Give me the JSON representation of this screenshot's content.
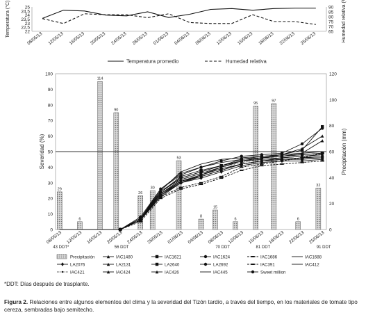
{
  "chart_data": [
    {
      "type": "line",
      "ylabel_left": "Temperatura (°C)",
      "ylabel_right": "Humedad relativa (%)",
      "x": [
        "08/05/13",
        "12/05/13",
        "16/05/13",
        "20/05/13",
        "24/05/13",
        "28/05/13",
        "01/06/13",
        "04/06/13",
        "08/06/13",
        "12/06/13",
        "15/06/13",
        "18/06/13",
        "22/06/13",
        "25/06/13"
      ],
      "yticks_left": [
        "25",
        "24,5",
        "24",
        "23,5",
        "23",
        "22,5",
        "22"
      ],
      "ylim_left": [
        22,
        25
      ],
      "yticks_right": [
        "90",
        "85",
        "80",
        "75",
        "70",
        "65"
      ],
      "ylim_right": [
        65,
        90
      ],
      "series": [
        {
          "name": "Temperatura promedio",
          "axis": "left",
          "style": "solid",
          "values": [
            23.6,
            24.6,
            24.5,
            24.0,
            23.9,
            24.4,
            23.7,
            24.1,
            24.7,
            24.8,
            24.6,
            24.8,
            24.85,
            24.85
          ]
        },
        {
          "name": "Humedad relativa",
          "axis": "right",
          "style": "dashed",
          "values": [
            78,
            73,
            83,
            82,
            82,
            79,
            83,
            74,
            73,
            73,
            82,
            75,
            75,
            72
          ]
        }
      ],
      "legend": "bottom"
    },
    {
      "type": "bar-line",
      "ylabel_left": "Severidad (%)",
      "ylabel_right": "Precipitación (mm)",
      "yticks_left": [
        "100",
        "90",
        "80",
        "70",
        "60",
        "50",
        "40",
        "30",
        "20",
        "10",
        "0"
      ],
      "ylim_left": [
        0,
        100
      ],
      "yticks_right": [
        "120",
        "100",
        "80",
        "60",
        "40",
        "20",
        "0"
      ],
      "ylim_right": [
        0,
        120
      ],
      "reference_line": 50,
      "x": [
        "08/05/13",
        "12/05/13",
        "16/05/13",
        "20/05/13",
        "24/05/13",
        "28/05/13",
        "01/06/13",
        "04/06/13",
        "08/06/13",
        "12/06/13",
        "15/06/13",
        "18/06/13",
        "22/06/13",
        "25/06/13"
      ],
      "ddt_labels": [
        {
          "after": "08/05/13",
          "text": "43 DDT*"
        },
        {
          "after": "20/05/13",
          "text": "56 DDT"
        },
        {
          "after": "08/06/13",
          "text": "70 DDT"
        },
        {
          "after": "15/06/13",
          "text": "81 DDT"
        },
        {
          "after": "25/06/13",
          "text": "91 DDT"
        }
      ],
      "precipitation": {
        "name": "Precipitación",
        "axis": "right",
        "positions": [
          0.0,
          1.0,
          2.0,
          2.8,
          4.0,
          4.6,
          5.9,
          7.0,
          7.7,
          8.7,
          9.7,
          10.6,
          11.8,
          12.8
        ],
        "values": [
          29,
          6,
          114,
          90,
          26,
          30,
          53,
          8,
          15,
          6,
          95,
          97,
          6,
          32
        ],
        "labels": [
          "29",
          "6",
          "114",
          "90",
          "26",
          "30",
          "53",
          "8",
          "15",
          "6",
          "95",
          "97",
          "6",
          "32"
        ]
      },
      "severity_positions": [
        0,
        1,
        2,
        3,
        4,
        5,
        6,
        7,
        8,
        9,
        10,
        11,
        12,
        13
      ],
      "severity_series": [
        {
          "name": "IAC1480",
          "marker": "triangle",
          "values": [
            0,
            0,
            0,
            0,
            6,
            22,
            31,
            35,
            40,
            44,
            45,
            46,
            47,
            48
          ]
        },
        {
          "name": "IAC1621",
          "marker": "square",
          "values": [
            0,
            0,
            0,
            0,
            7,
            24,
            34,
            38,
            41,
            45,
            47,
            48,
            51,
            66
          ]
        },
        {
          "name": "IAC1624",
          "marker": "circle",
          "values": [
            0,
            0,
            0,
            0,
            6,
            22,
            30,
            35,
            39,
            42,
            44,
            45,
            46,
            47
          ]
        },
        {
          "name": "IAC1686",
          "marker": "dash",
          "values": [
            0,
            0,
            0,
            0,
            6,
            21,
            27,
            30,
            34,
            40,
            42,
            44,
            46,
            49
          ]
        },
        {
          "name": "IAC1688",
          "marker": "line",
          "values": [
            0,
            0,
            0,
            0,
            7,
            25,
            37,
            42,
            45,
            46,
            47,
            48,
            49,
            50
          ]
        },
        {
          "name": "LA2076",
          "marker": "diamond",
          "values": [
            0,
            0,
            0,
            0,
            6,
            21,
            30,
            33,
            37,
            41,
            43,
            44,
            44,
            45
          ]
        },
        {
          "name": "LA2131",
          "marker": "triangle",
          "values": [
            0,
            0,
            0,
            0,
            7,
            23,
            32,
            36,
            40,
            44,
            46,
            47,
            49,
            57
          ]
        },
        {
          "name": "LA2640",
          "marker": "square",
          "values": [
            0,
            0,
            0,
            0,
            6,
            24,
            33,
            37,
            41,
            44,
            46,
            47,
            48,
            49
          ]
        },
        {
          "name": "LA2692",
          "marker": "circle",
          "values": [
            0,
            0,
            0,
            0,
            6,
            22,
            30,
            34,
            38,
            42,
            44,
            45,
            45,
            46
          ]
        },
        {
          "name": "IAC391",
          "marker": "dash",
          "values": [
            0,
            0,
            0,
            0,
            5,
            20,
            26,
            29,
            33,
            38,
            41,
            42,
            43,
            44
          ]
        },
        {
          "name": "IAC412",
          "marker": "line",
          "values": [
            0,
            0,
            0,
            0,
            7,
            26,
            35,
            40,
            43,
            45,
            46,
            47,
            48,
            49
          ]
        },
        {
          "name": "IAC421",
          "marker": "dots",
          "values": [
            0,
            0,
            0,
            0,
            6,
            25,
            32,
            36,
            40,
            43,
            45,
            46,
            47,
            48
          ]
        },
        {
          "name": "IAC424",
          "marker": "triangle",
          "values": [
            0,
            0,
            0,
            0,
            6,
            22,
            31,
            35,
            39,
            42,
            44,
            45,
            46,
            46
          ]
        },
        {
          "name": "IAC426",
          "marker": "triangle",
          "values": [
            0,
            0,
            0,
            0,
            7,
            24,
            33,
            37,
            41,
            44,
            46,
            48,
            52,
            60
          ]
        },
        {
          "name": "IAC445",
          "marker": "line",
          "values": [
            0,
            0,
            0,
            0,
            6,
            23,
            31,
            34,
            38,
            42,
            44,
            46,
            47,
            48
          ]
        },
        {
          "name": "Sweet million",
          "marker": "circle",
          "values": [
            0,
            0,
            0,
            0,
            8,
            26,
            36,
            40,
            44,
            47,
            48,
            49,
            55,
            65
          ]
        }
      ],
      "legend": "bottom"
    }
  ],
  "footnote": "*DDT: Días después de trasplante.",
  "caption": {
    "label": "Figura 2.",
    "text": " Relaciones entre algunos elementos del clima y la severidad del Tizón tardío, a través del tiempo, en los materiales de tomate tipo cereza, sembradas bajo semitecho."
  },
  "colors": {
    "line": "#111111",
    "bar_fill": "#bdbdbd",
    "grid": "#cfcfcf",
    "text": "#222222"
  }
}
